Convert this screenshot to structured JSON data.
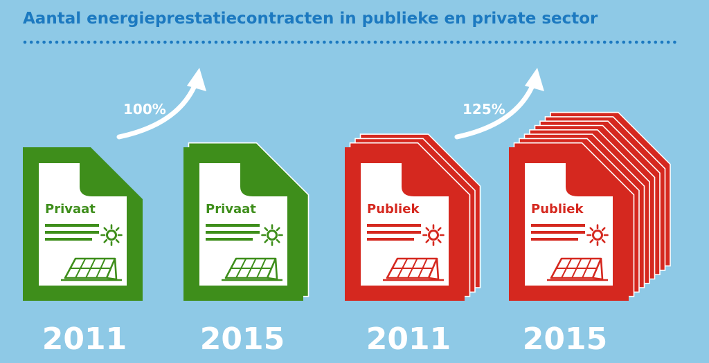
{
  "title": "Aantal energieprestatiecontracten in publieke en private sector",
  "colors": {
    "background": "#8ec9e6",
    "title": "#1c79c0",
    "private": "#3e8e1b",
    "public": "#d5281f",
    "paper": "#ffffff"
  },
  "chart_data": {
    "type": "pictogram",
    "title": "Aantal energieprestatiecontracten in publieke en private sector",
    "groups": [
      {
        "sector": "Privaat",
        "color": "#3e8e1b",
        "growth_label": "100%",
        "bars": [
          {
            "year": "2011",
            "doc_label": "Privaat",
            "documents": 1
          },
          {
            "year": "2015",
            "doc_label": "Privaat",
            "documents": 2
          }
        ]
      },
      {
        "sector": "Publiek",
        "color": "#d5281f",
        "growth_label": "125%",
        "bars": [
          {
            "year": "2011",
            "doc_label": "Publiek",
            "documents": 4
          },
          {
            "year": "2015",
            "doc_label": "Publiek",
            "documents": 9
          }
        ]
      }
    ],
    "icons": [
      "document-icon",
      "sun-icon",
      "solar-panel-icon",
      "arrow-up-icon"
    ]
  }
}
